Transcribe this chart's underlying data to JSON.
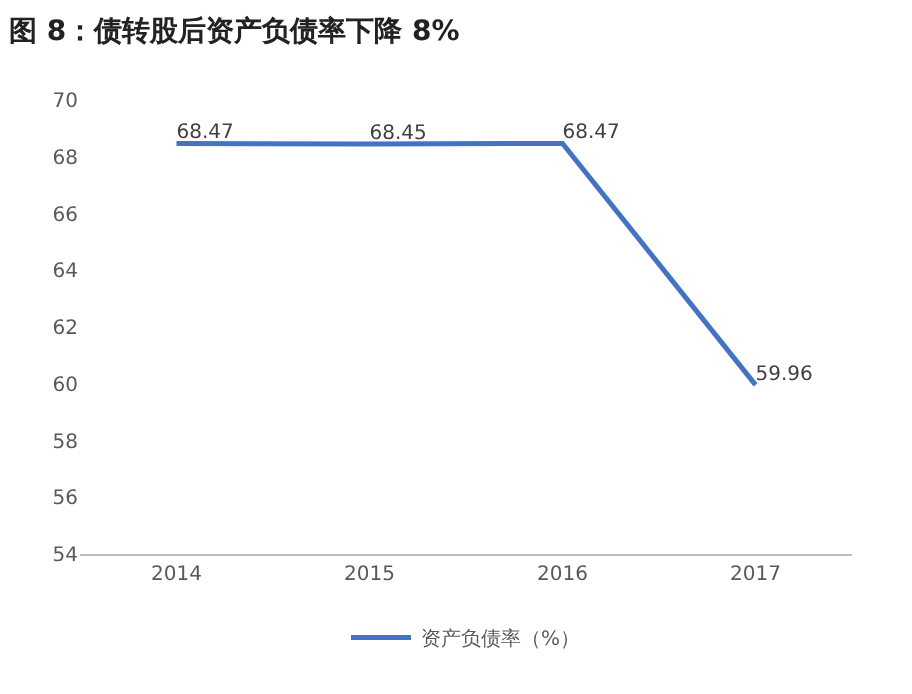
{
  "chart_data": {
    "type": "line",
    "title": "图 8：债转股后资产负债率下降 8%",
    "categories": [
      "2014",
      "2015",
      "2016",
      "2017"
    ],
    "series": [
      {
        "name": "资产负债率（%）",
        "color": "#4472c4",
        "values": [
          68.47,
          68.45,
          68.47,
          59.96
        ]
      }
    ],
    "ylim": [
      54,
      70
    ],
    "yticks": [
      54,
      56,
      58,
      60,
      62,
      64,
      66,
      68,
      70
    ],
    "grid": false,
    "legend": "bottom",
    "data_labels": true,
    "marker": "none",
    "line_style": "solid"
  }
}
